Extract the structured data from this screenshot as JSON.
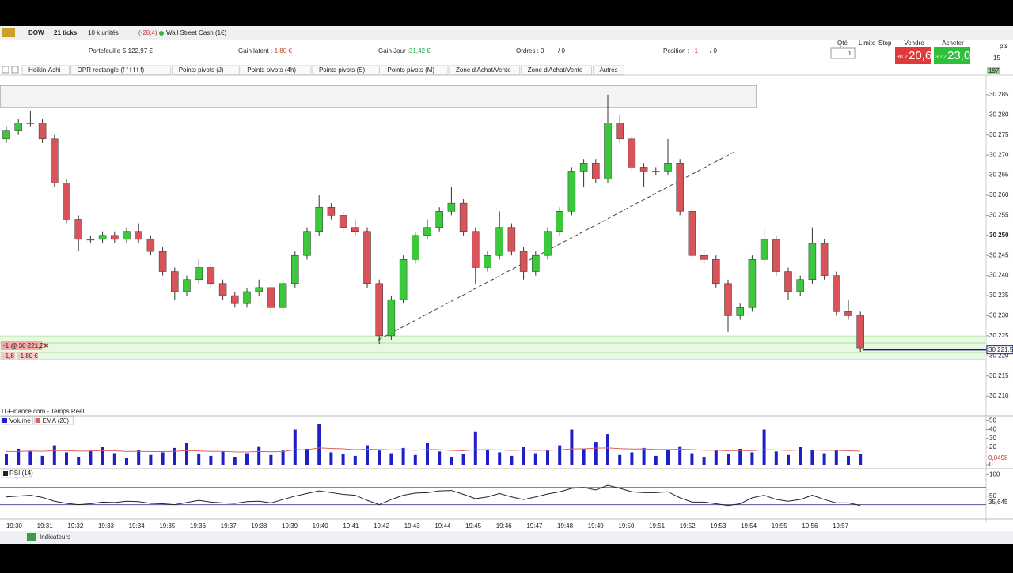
{
  "toolbar": {
    "symbol": "DOW",
    "ticks": "21 ticks",
    "units": "10 k unités",
    "change": "(-28,4)",
    "instrument": "Wall Street Cash (1€)"
  },
  "account": {
    "portfolio_label": "Portefeuille :",
    "portfolio": "5 122,97 €",
    "unrealized_label": "Gain latent :",
    "unrealized": "-1,80 €",
    "day_gain_label": "Gain Jour :",
    "day_gain": "31,42 €",
    "orders_label": "Ordres :",
    "orders": "0",
    "orders_total": "/ 0",
    "position_label": "Position :",
    "position": "-1",
    "position_total": "/ 0",
    "qty_label": "Qté",
    "qty": "1",
    "limit_label": "Limite",
    "stop_label": "Stop",
    "sell_label": "Vendre",
    "buy_label": "Acheter",
    "sell_prefix": "30 2",
    "sell_price": "20,6",
    "buy_prefix": "30 2",
    "buy_price": "23,0",
    "pts": "pts",
    "pts_value": "15"
  },
  "indicator_bar": [
    "Heikin-Ashi",
    "OPR rectangle (f f f f f f)",
    "Points pivots (J)",
    "Points pivots (4h)",
    "Points pivots (S)",
    "Points pivots (M)",
    "Zone d'Achat/Vente",
    "Zone d'Achat/Vente",
    "Autres"
  ],
  "order": {
    "label": "-1 @ 30 221,2",
    "points": "-1,8",
    "amount": "-1,80 €"
  },
  "source": "IT-Finance.com - Temps Réel",
  "footer": {
    "indicators": "Indicateurs"
  },
  "chart_data": [
    {
      "type": "candlestick",
      "last_price": {
        "value": 30221.5,
        "label": "30 221,5"
      },
      "tick_count": "197",
      "ylim": [
        30205.3,
        30289.9
      ],
      "major_tick": 30250,
      "yticks": [
        {
          "value": 30210,
          "label": "30 210"
        },
        {
          "value": 30215,
          "label": "30 215"
        },
        {
          "value": 30220,
          "label": "30 220"
        },
        {
          "value": 30225,
          "label": "30 225"
        },
        {
          "value": 30230,
          "label": "30 230"
        },
        {
          "value": 30235,
          "label": "30 235"
        },
        {
          "value": 30240,
          "label": "30 240"
        },
        {
          "value": 30245,
          "label": "30 245"
        },
        {
          "value": 30250,
          "label": "30 250"
        },
        {
          "value": 30255,
          "label": "30 255"
        },
        {
          "value": 30260,
          "label": "30 260"
        },
        {
          "value": 30265,
          "label": "30 265"
        },
        {
          "value": 30270,
          "label": "30 270"
        },
        {
          "value": 30275,
          "label": "30 275"
        },
        {
          "value": 30280,
          "label": "30 280"
        },
        {
          "value": 30285,
          "label": "30 285"
        }
      ],
      "up_color": "#3cc83c",
      "down_color": "#d9545a",
      "open": [
        30274,
        30276,
        30278,
        30278,
        30274,
        30263,
        30254,
        30249,
        30249,
        30250,
        30249,
        30251,
        30249,
        30246,
        30241,
        30236,
        30239,
        30242,
        30238,
        30235,
        30233,
        30236,
        30237,
        30232,
        30238,
        30245,
        30251,
        30257,
        30255,
        30252,
        30251,
        30238,
        30225,
        30234,
        30244,
        30250,
        30252,
        30256,
        30258,
        30251,
        30242,
        30245,
        30252,
        30246,
        30241,
        30245,
        30251,
        30256,
        30266,
        30268,
        30264,
        30278,
        30274,
        30267,
        30266,
        30266,
        30268,
        30256,
        30245,
        30244,
        30238,
        30230,
        30232,
        30244,
        30249,
        30241,
        30236,
        30239,
        30248,
        30240,
        30231,
        30230
      ],
      "high": [
        30277,
        30279,
        30281,
        30279,
        30275,
        30264,
        30255,
        30250,
        30251,
        30251,
        30252,
        30253,
        30250,
        30247,
        30242,
        30240,
        30244,
        30243,
        30239,
        30236,
        30237,
        30239,
        30238,
        30239,
        30246,
        30252,
        30260,
        30258,
        30256,
        30254,
        30252,
        30239,
        30235,
        30245,
        30251,
        30254,
        30257,
        30262,
        30259,
        30252,
        30246,
        30256,
        30253,
        30247,
        30246,
        30252,
        30257,
        30267,
        30269,
        30269,
        30285,
        30280,
        30275,
        30268,
        30267,
        30274,
        30269,
        30257,
        30246,
        30245,
        30239,
        30233,
        30245,
        30252,
        30250,
        30242,
        30240,
        30252,
        30249,
        30241,
        30234,
        30231
      ],
      "low": [
        30273,
        30275,
        30277,
        30273,
        30262,
        30253,
        30246,
        30248,
        30248,
        30248,
        30248,
        30248,
        30245,
        30240,
        30234,
        30235,
        30238,
        30237,
        30234,
        30232,
        30232,
        30235,
        30230,
        30231,
        30237,
        30244,
        30250,
        30254,
        30251,
        30250,
        30237,
        30223,
        30224,
        30233,
        30243,
        30249,
        30251,
        30255,
        30250,
        30238,
        30241,
        30244,
        30245,
        30239,
        30240,
        30244,
        30250,
        30255,
        30262,
        30263,
        30263,
        30273,
        30266,
        30262,
        30265,
        30265,
        30255,
        30244,
        30243,
        30237,
        30226,
        30229,
        30231,
        30243,
        30240,
        30234,
        30235,
        30238,
        30239,
        30230,
        30229,
        30221
      ],
      "close": [
        30276,
        30278,
        30278,
        30274,
        30263,
        30254,
        30249,
        30249,
        30250,
        30249,
        30251,
        30249,
        30246,
        30241,
        30236,
        30239,
        30242,
        30238,
        30235,
        30233,
        30236,
        30237,
        30232,
        30238,
        30245,
        30251,
        30257,
        30255,
        30252,
        30251,
        30238,
        30225,
        30234,
        30244,
        30250,
        30252,
        30256,
        30258,
        30251,
        30242,
        30245,
        30252,
        30246,
        30241,
        30245,
        30251,
        30256,
        30266,
        30268,
        30264,
        30278,
        30274,
        30267,
        30266,
        30266,
        30268,
        30256,
        30245,
        30244,
        30238,
        30230,
        30232,
        30244,
        30249,
        30241,
        30236,
        30239,
        30248,
        30240,
        30231,
        30230,
        30222
      ]
    },
    {
      "type": "bar",
      "series": [
        {
          "name": "Volume",
          "color": "#1f1fc8",
          "values": [
            12,
            18,
            15,
            10,
            22,
            14,
            9,
            16,
            20,
            13,
            8,
            17,
            11,
            14,
            19,
            25,
            12,
            10,
            15,
            9,
            13,
            21,
            11,
            16,
            40,
            18,
            46,
            14,
            12,
            10,
            22,
            16,
            13,
            19,
            11,
            25,
            15,
            9,
            12,
            38,
            17,
            14,
            10,
            20,
            13,
            16,
            22,
            40,
            18,
            26,
            35,
            11,
            14,
            19,
            10,
            17,
            21,
            13,
            9,
            16,
            12,
            18,
            14,
            40,
            15,
            11,
            20,
            17,
            13,
            16,
            10,
            12
          ]
        },
        {
          "name": "EMA (20)",
          "color": "#e06060",
          "values": [
            15,
            15,
            15.5,
            15.2,
            16,
            16,
            15.4,
            15.5,
            16,
            15.8,
            15,
            15.2,
            14.8,
            14.8,
            15.2,
            16,
            15.6,
            15.1,
            15.1,
            14.5,
            14.4,
            15,
            14.6,
            14.8,
            17,
            17,
            19,
            18.5,
            18,
            17,
            17.5,
            17.2,
            16.8,
            17,
            16.4,
            17.2,
            17,
            16.2,
            15.8,
            17,
            17,
            16.8,
            16.2,
            16.6,
            16.3,
            16.3,
            16.8,
            18,
            18,
            18.8,
            19,
            18.2,
            17.8,
            17.9,
            17.2,
            17.2,
            17.5,
            17.1,
            16.4,
            16.4,
            15.9,
            16.1,
            15.9,
            17,
            16.8,
            16.2,
            16.6,
            16.6,
            16.3,
            16.3,
            15.7,
            15.3
          ]
        }
      ],
      "ylim": [
        0,
        54
      ],
      "yticks": [
        0,
        20,
        30,
        40,
        50
      ],
      "ema_label": "0,0498"
    },
    {
      "type": "line",
      "series": [
        {
          "name": "RSI (14)",
          "color": "#222222",
          "values": [
            48,
            50,
            52,
            47,
            38,
            33,
            30,
            32,
            36,
            35,
            38,
            37,
            33,
            32,
            30,
            35,
            40,
            36,
            34,
            33,
            37,
            38,
            34,
            42,
            50,
            56,
            62,
            58,
            54,
            52,
            40,
            30,
            42,
            52,
            57,
            58,
            62,
            63,
            54,
            44,
            48,
            56,
            48,
            42,
            48,
            55,
            60,
            68,
            70,
            64,
            75,
            68,
            60,
            58,
            58,
            60,
            46,
            36,
            36,
            32,
            28,
            32,
            46,
            52,
            42,
            38,
            42,
            52,
            42,
            34,
            34,
            28
          ]
        }
      ],
      "ylim": [
        0,
        108
      ],
      "yticks": [
        50,
        100
      ],
      "levels": [
        70,
        30
      ],
      "level_color": "#6a4c9c",
      "rsi_label": "35,645",
      "xticks": [
        "19:30",
        "19:31",
        "19:32",
        "19:33",
        "19:34",
        "19:35",
        "19:36",
        "19:37",
        "19:38",
        "19:39",
        "19:40",
        "19:41",
        "19:42",
        "19:43",
        "19:44",
        "19:45",
        "19:46",
        "19:47",
        "19:48",
        "19:49",
        "19:50",
        "19:51",
        "19:52",
        "19:53",
        "19:54",
        "19:55",
        "19:56",
        "19:57"
      ]
    }
  ]
}
